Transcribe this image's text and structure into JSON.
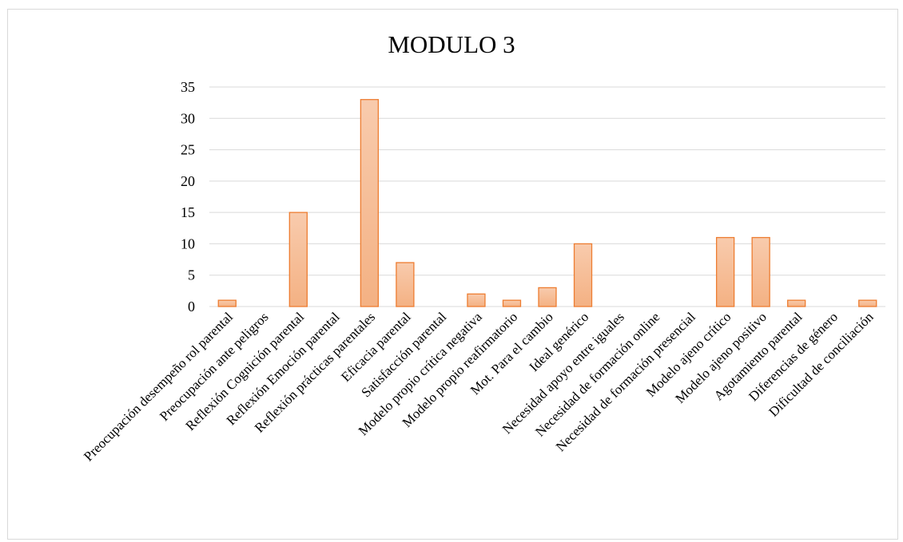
{
  "chart_data": {
    "type": "bar",
    "title": "MODULO 3",
    "xlabel": "",
    "ylabel": "",
    "ylim": [
      0,
      35
    ],
    "yticks": [
      0,
      5,
      10,
      15,
      20,
      25,
      30,
      35
    ],
    "grid": true,
    "legend": "none",
    "categories": [
      "Preocupación desempeño rol parental",
      "Preocupación ante peligros",
      "Reflexión Cognición parental",
      "Reflexión Emoción parental",
      "Reflexión prácticas parentales",
      "Eficacia parental",
      "Satisfacción parental",
      "Modelo propio crítica negativa",
      "Modelo propio reafirmatorio",
      "Mot. Para el cambio",
      "Ideal genérico",
      "Necesidad apoyo entre iguales",
      "Necesidad de formación online",
      "Necesidad de formación presencial",
      "Modelo ajeno crítico",
      "Modelo ajeno positivo",
      "Agotamiento parental",
      "Diferencias de género",
      "Dificultad de conciliación"
    ],
    "values": [
      1,
      0,
      15,
      0,
      33,
      7,
      0,
      2,
      1,
      3,
      10,
      0,
      0,
      0,
      11,
      11,
      1,
      0,
      1
    ],
    "colors": {
      "bar_top": "#f8cbad",
      "bar_bottom": "#f4b183",
      "bar_edge": "#ed7d31",
      "grid": "#d9d9d9"
    }
  }
}
